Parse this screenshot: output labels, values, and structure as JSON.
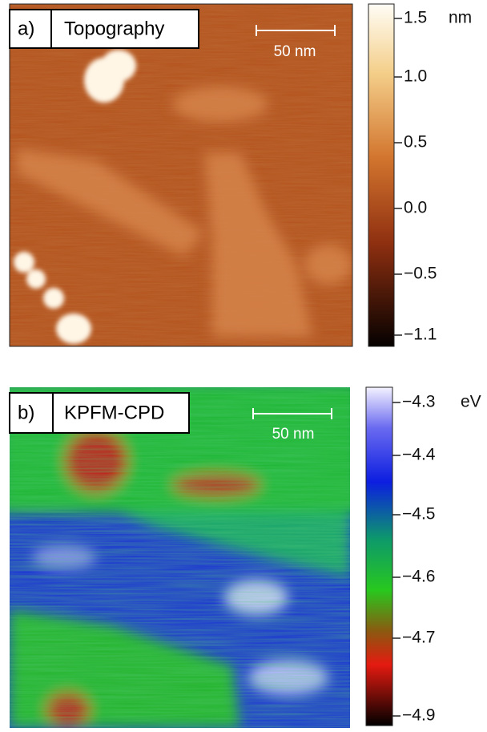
{
  "panels": [
    {
      "label": "a)",
      "title": "Topography",
      "scale_bar": "50 nm",
      "colorbar": {
        "unit": "nm",
        "ticks": [
          "1.5",
          "1.0",
          "0.5",
          "0.0",
          "−0.5",
          "−1.1"
        ]
      }
    },
    {
      "label": "b)",
      "title": "KPFM-CPD",
      "scale_bar": "50 nm",
      "colorbar": {
        "unit": "eV",
        "ticks": [
          "−4.3",
          "−4.4",
          "−4.5",
          "−4.6",
          "−4.7",
          "−4.9"
        ]
      }
    }
  ]
}
